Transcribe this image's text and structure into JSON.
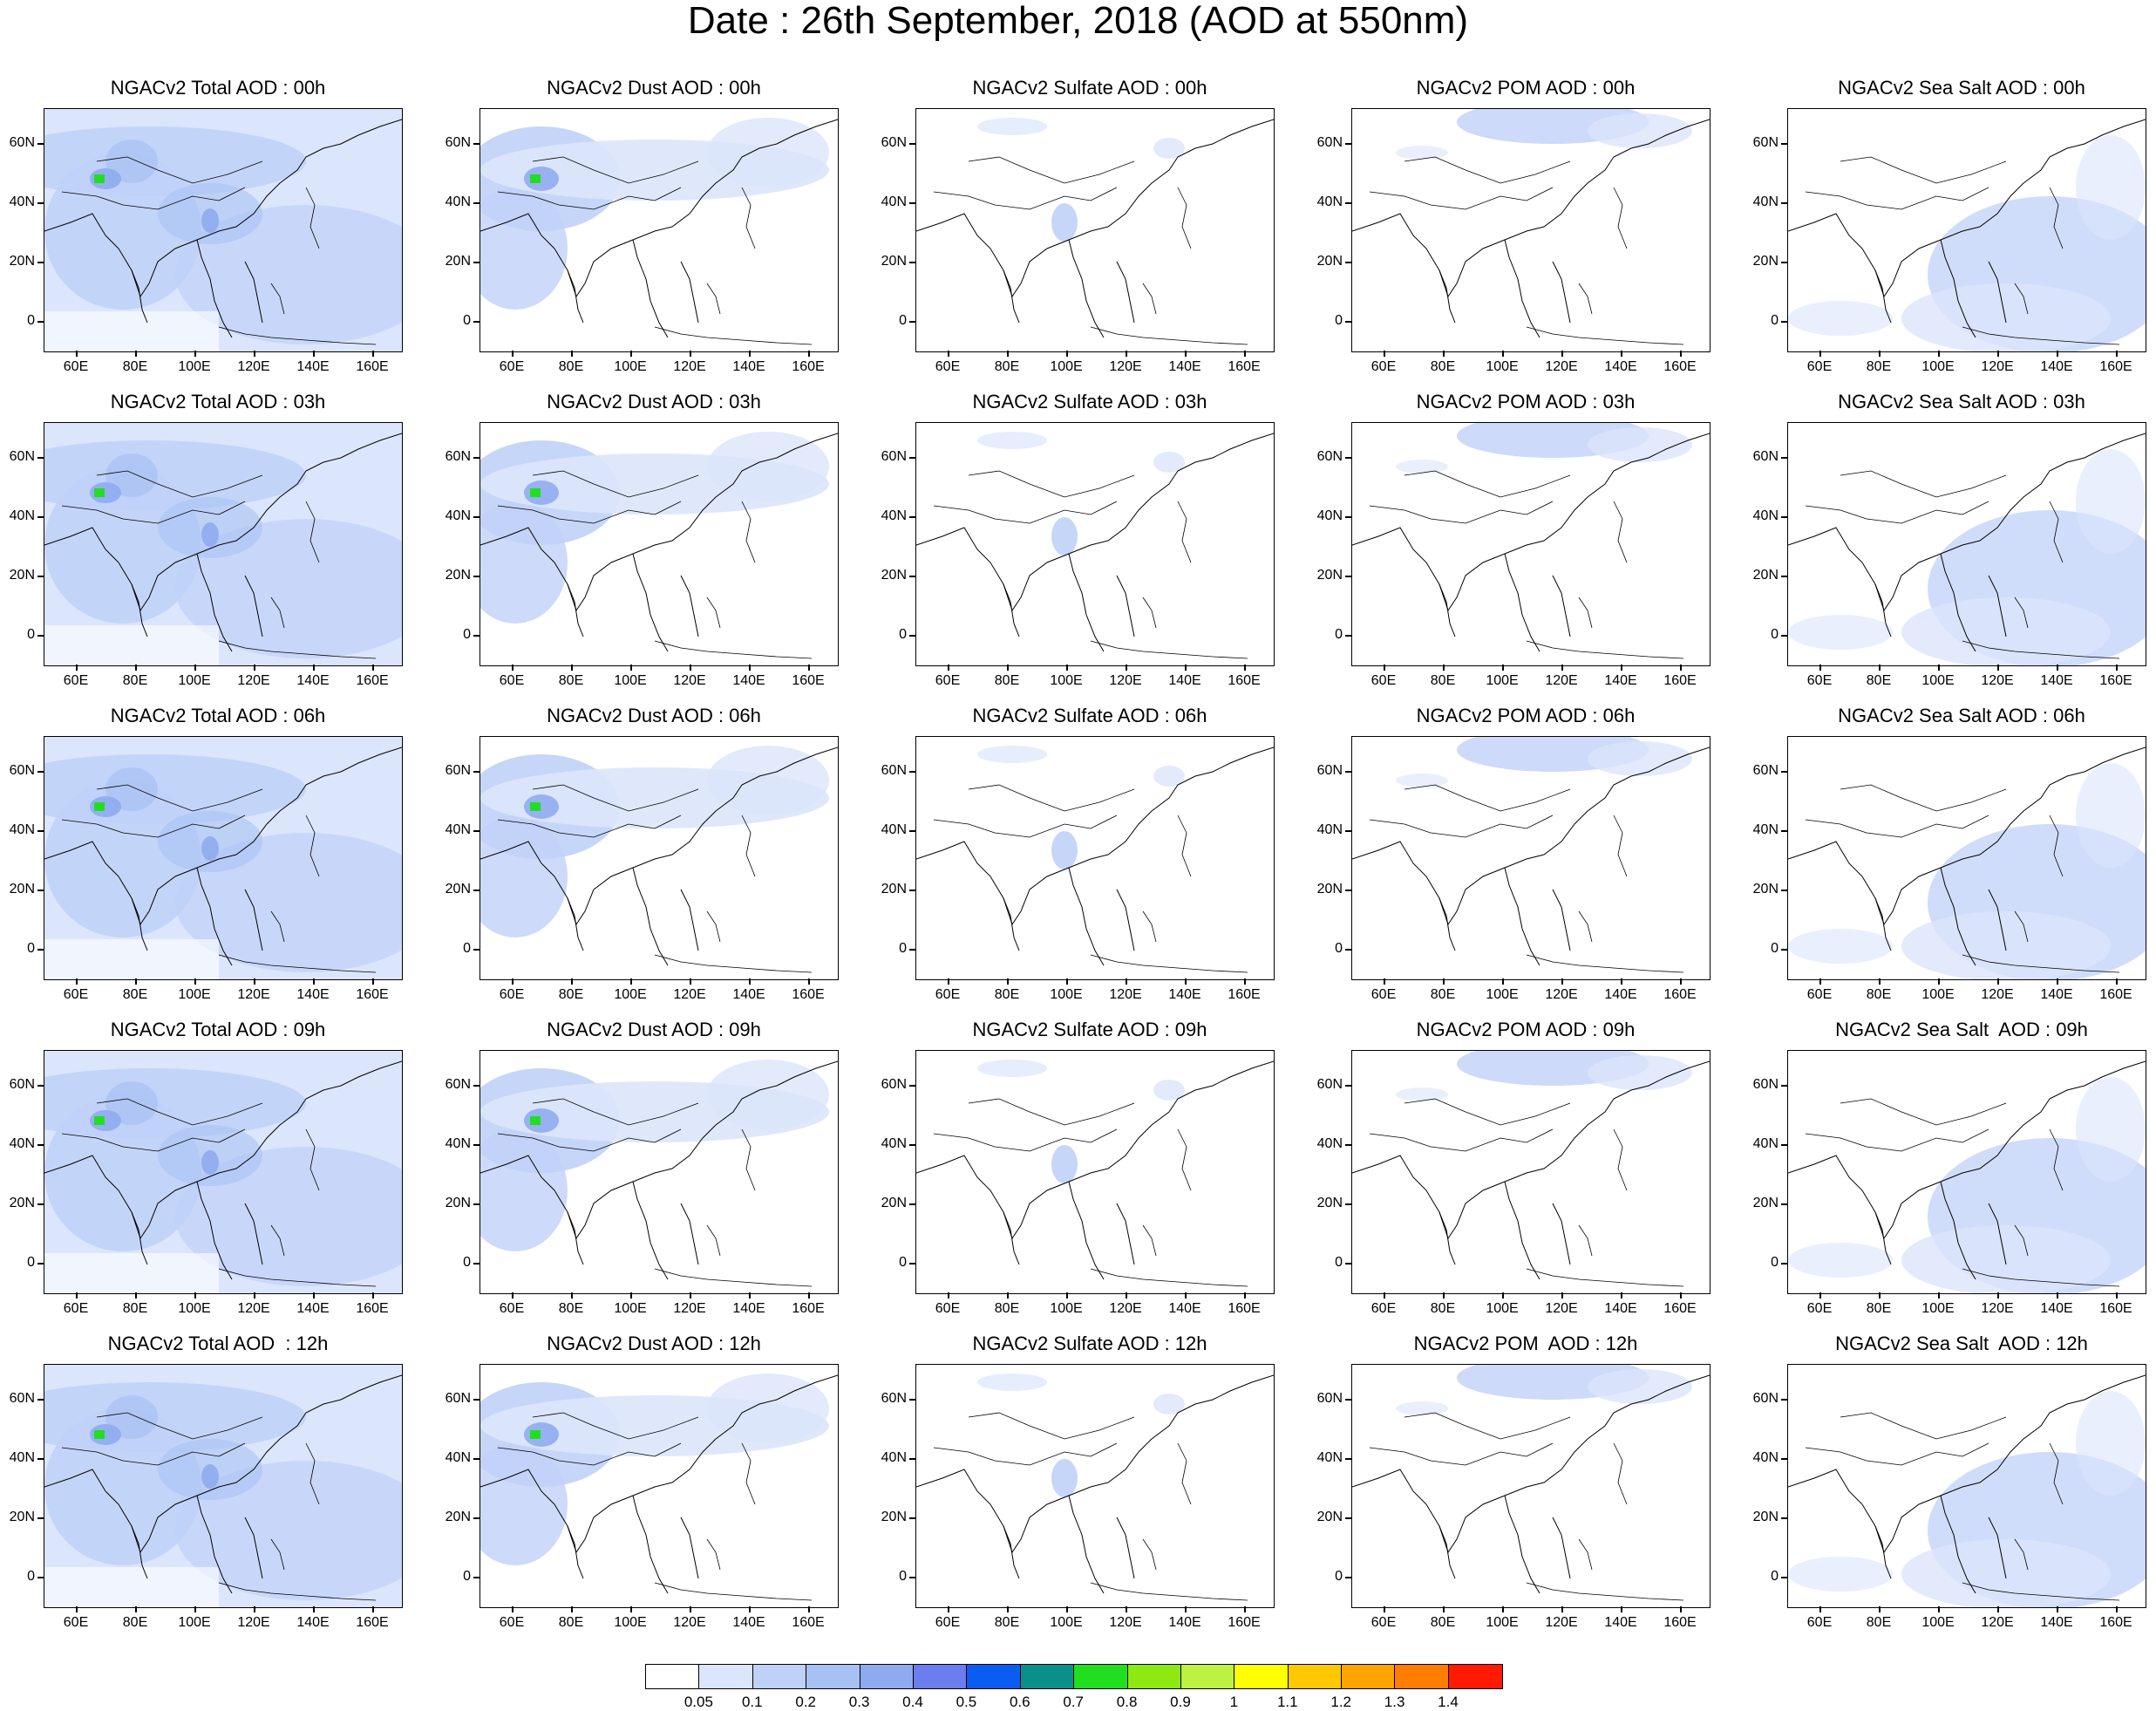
{
  "figure_title": "Date : 26th September, 2018 (AOD at 550nm)",
  "lat_labels": [
    "60N",
    "40N",
    "20N",
    "0"
  ],
  "lon_labels": [
    "60E",
    "80E",
    "100E",
    "120E",
    "140E",
    "160E"
  ],
  "rows": [
    [
      "NGACv2 Total AOD : 00h",
      "NGACv2 Dust AOD : 00h",
      "NGACv2 Sulfate AOD : 00h",
      "NGACv2 POM AOD : 00h",
      "NGACv2 Sea Salt AOD : 00h"
    ],
    [
      "NGACv2 Total AOD : 03h",
      "NGACv2 Dust AOD : 03h",
      "NGACv2 Sulfate AOD : 03h",
      "NGACv2 POM AOD : 03h",
      "NGACv2 Sea Salt AOD : 03h"
    ],
    [
      "NGACv2 Total AOD : 06h",
      "NGACv2 Dust AOD : 06h",
      "NGACv2 Sulfate AOD : 06h",
      "NGACv2 POM AOD : 06h",
      "NGACv2 Sea Salt AOD : 06h"
    ],
    [
      "NGACv2 Total AOD : 09h",
      "NGACv2 Dust AOD : 09h",
      "NGACv2 Sulfate AOD : 09h",
      "NGACv2 POM AOD : 09h",
      "NGACv2 Sea Salt  AOD : 09h"
    ],
    [
      "NGACv2 Total AOD  : 12h",
      "NGACv2 Dust AOD : 12h",
      "NGACv2 Sulfate AOD : 12h",
      "NGACv2 POM  AOD : 12h",
      "NGACv2 Sea Salt  AOD : 12h"
    ]
  ],
  "colorbar": {
    "labels": [
      "0.05",
      "0.1",
      "0.2",
      "0.3",
      "0.4",
      "0.5",
      "0.6",
      "0.7",
      "0.8",
      "0.9",
      "1",
      "1.1",
      "1.2",
      "1.3",
      "1.4"
    ],
    "colors": [
      "#ffffff",
      "#dbe5fb",
      "#c0d1f8",
      "#a8c1f4",
      "#8fabf0",
      "#6c7ded",
      "#0b5cf0",
      "#0b8f8a",
      "#21de21",
      "#8ee912",
      "#bdf142",
      "#ffff00",
      "#ffc800",
      "#ffa400",
      "#ff7d00",
      "#ff1a00"
    ]
  }
}
